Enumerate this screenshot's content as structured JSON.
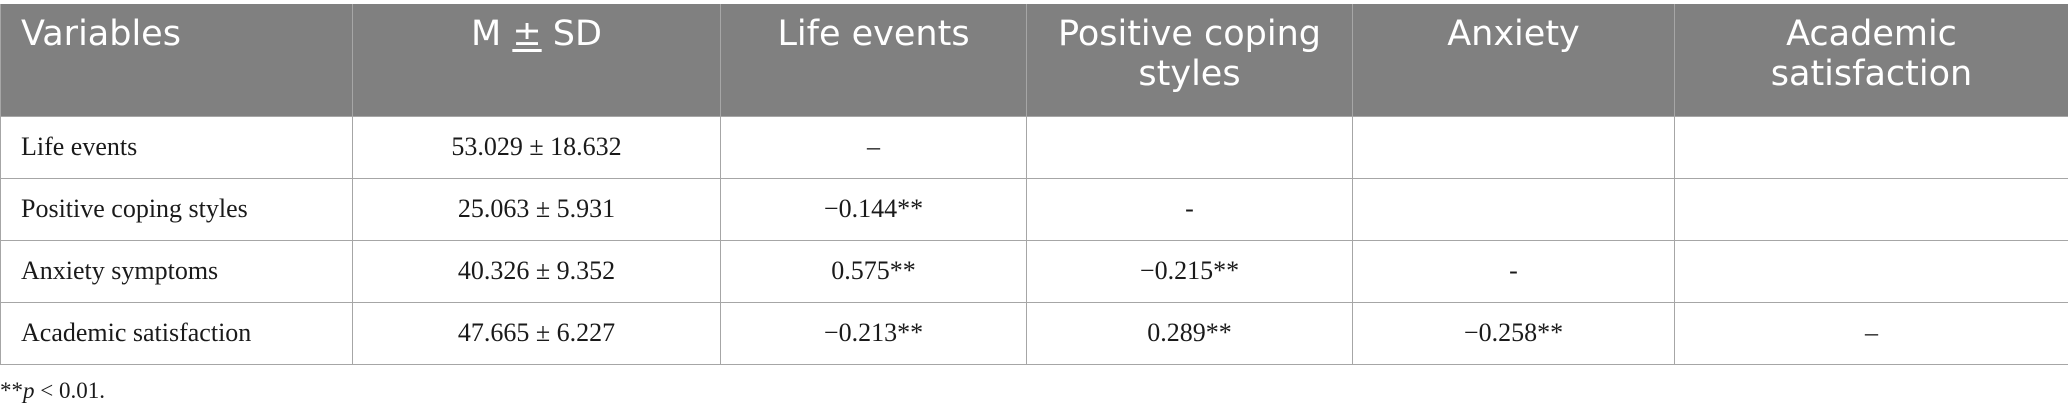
{
  "table": {
    "headers": [
      "Variables",
      "Life events",
      "Positive coping styles",
      "Anxiety",
      "Academic satisfaction"
    ],
    "header_msd": {
      "m": "M ",
      "pm": "±",
      "sd": " SD"
    },
    "rows": [
      [
        "Life events",
        "53.029 ± 18.632",
        "–",
        "",
        "",
        ""
      ],
      [
        "Positive coping styles",
        "25.063 ± 5.931",
        "−0.144**",
        "-",
        "",
        ""
      ],
      [
        "Anxiety symptoms",
        "40.326 ± 9.352",
        "0.575**",
        "−0.215**",
        "-",
        ""
      ],
      [
        "Academic satisfaction",
        "47.665 ± 6.227",
        "−0.213**",
        "0.289**",
        "−0.258**",
        "–"
      ]
    ]
  },
  "footnote": {
    "stars": "**",
    "p": "p",
    "rest": " < 0.01."
  }
}
